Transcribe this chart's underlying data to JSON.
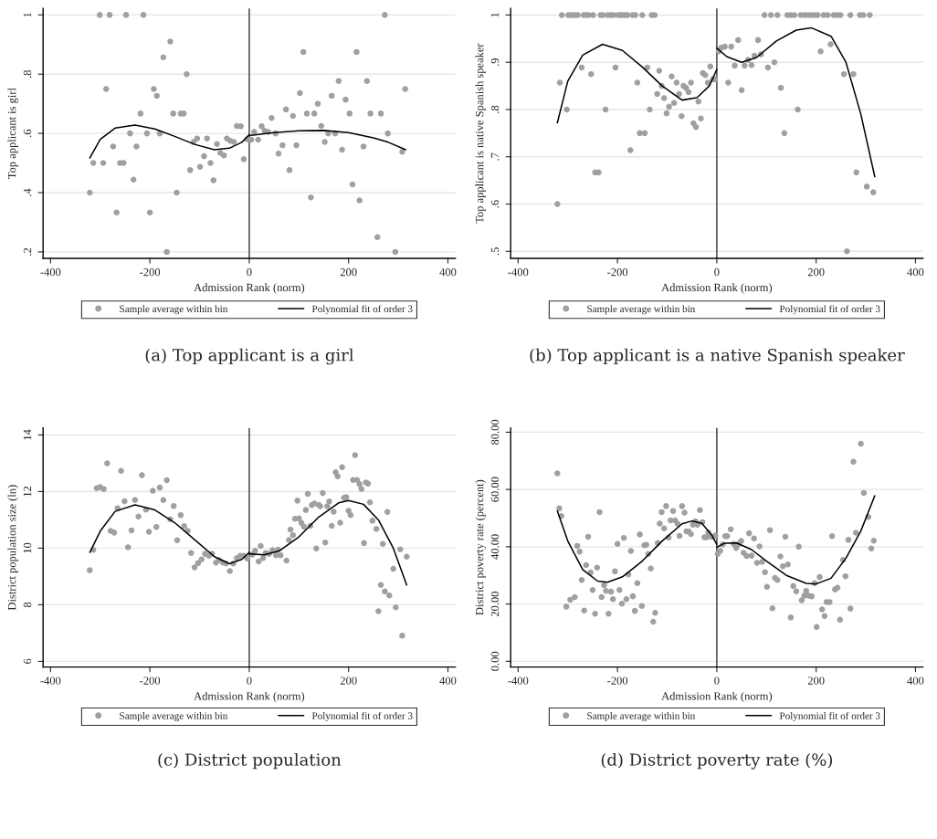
{
  "chart_data": [
    {
      "type": "scatter",
      "xlabel": "Admission Rank (norm)",
      "ylabel": "Top applicant is girl",
      "xlim": [
        -415,
        415
      ],
      "xticks": [
        -400,
        -200,
        0,
        200,
        400
      ],
      "ylim": [
        0.178,
        1.022
      ],
      "yticks": [
        {
          "value": 0.2,
          "label": ".2"
        },
        {
          "value": 0.4,
          "label": ".4"
        },
        {
          "value": 0.6,
          "label": ".6"
        },
        {
          "value": 0.8,
          "label": ".8"
        },
        {
          "value": 1,
          "label": "1"
        }
      ],
      "grid": "y",
      "legend": "bottom",
      "ref_lines": [
        {
          "axis": "x",
          "value": 0,
          "color": "#555555"
        }
      ],
      "annotations": [
        "(a) Top applicant is a girl"
      ],
      "series": [
        {
          "name": "Sample average within bin",
          "marker": "circle",
          "color": "#a0a0a0",
          "x": [
            -301,
            -281,
            -248,
            -213,
            273,
            -159,
            -173,
            -126,
            -288,
            -192,
            -186,
            -219,
            -153,
            -138,
            -132,
            -240,
            -206,
            -180,
            -274,
            -227,
            -314,
            -294,
            -260,
            -253,
            -233,
            -321,
            -146,
            -267,
            -200,
            -166,
            -119,
            -112,
            -105,
            -99,
            -91,
            -85,
            -78,
            -72,
            -65,
            -58,
            -51,
            -45,
            -38,
            -31,
            -25,
            -17,
            -11,
            -4,
            4,
            10,
            18,
            25,
            31,
            38,
            45,
            53,
            59,
            67,
            74,
            81,
            88,
            95,
            102,
            109,
            116,
            124,
            131,
            138,
            145,
            152,
            159,
            166,
            173,
            180,
            187,
            194,
            202,
            208,
            216,
            222,
            230,
            237,
            244,
            258,
            265,
            279,
            294,
            308,
            314
          ],
          "values": [
            1,
            1,
            1,
            1,
            1,
            0.91,
            0.857,
            0.8,
            0.75,
            0.75,
            0.727,
            0.667,
            0.667,
            0.667,
            0.667,
            0.6,
            0.6,
            0.6,
            0.556,
            0.556,
            0.5,
            0.5,
            0.5,
            0.5,
            0.444,
            0.4,
            0.4,
            0.333,
            0.333,
            0.2,
            0.476,
            0.571,
            0.583,
            0.487,
            0.523,
            0.583,
            0.5,
            0.442,
            0.564,
            0.534,
            0.526,
            0.583,
            0.575,
            0.571,
            0.625,
            0.624,
            0.513,
            0.58,
            0.579,
            0.605,
            0.579,
            0.624,
            0.609,
            0.605,
            0.652,
            0.6,
            0.532,
            0.56,
            0.681,
            0.476,
            0.659,
            0.56,
            0.736,
            0.875,
            0.667,
            0.384,
            0.667,
            0.7,
            0.625,
            0.571,
            0.6,
            0.727,
            0.6,
            0.777,
            0.545,
            0.714,
            0.667,
            0.428,
            0.875,
            0.374,
            0.556,
            0.777,
            0.667,
            0.25,
            0.667,
            0.6,
            0.2,
            0.538,
            0.75
          ]
        },
        {
          "name": "Polynomial fit of order 3",
          "type": "line",
          "line_style": "solid",
          "color": "#000000",
          "x": [
            -321,
            -300,
            -270,
            -230,
            -190,
            -150,
            -110,
            -70,
            -40,
            -15,
            0
          ],
          "values": [
            0.517,
            0.58,
            0.618,
            0.628,
            0.615,
            0.59,
            0.563,
            0.545,
            0.55,
            0.57,
            0.596
          ]
        },
        {
          "type": "line",
          "line_style": "solid",
          "color": "#000000",
          "x": [
            0,
            50,
            100,
            150,
            200,
            250,
            280,
            315
          ],
          "values": [
            0.593,
            0.603,
            0.609,
            0.61,
            0.603,
            0.585,
            0.57,
            0.545
          ]
        }
      ]
    },
    {
      "type": "scatter",
      "xlabel": "Admission Rank (norm)",
      "ylabel": "Top applicant is native Spanish speaker",
      "xlim": [
        -415,
        415
      ],
      "xticks": [
        -400,
        -200,
        0,
        200,
        400
      ],
      "ylim": [
        0.485,
        1.014
      ],
      "yticks": [
        {
          "value": 0.5,
          "label": ".5"
        },
        {
          "value": 0.6,
          "label": ".6"
        },
        {
          "value": 0.7,
          "label": ".7"
        },
        {
          "value": 0.8,
          "label": ".8"
        },
        {
          "value": 0.9,
          "label": ".9"
        },
        {
          "value": 1,
          "label": "1"
        }
      ],
      "grid": "y",
      "legend": "bottom",
      "ref_lines": [
        {
          "axis": "x",
          "value": 0,
          "color": "#555555"
        }
      ],
      "annotations": [
        "(b) Top applicant is a native Spanish speaker"
      ],
      "series": [
        {
          "name": "Sample average within bin",
          "marker": "circle",
          "color": "#a0a0a0",
          "x": [
            -312,
            -299,
            -294,
            -289,
            -285,
            -280,
            -268,
            -263,
            -258,
            -249,
            -234,
            -229,
            -219,
            -213,
            -208,
            -199,
            -195,
            -190,
            -185,
            -180,
            -170,
            -164,
            -150,
            -131,
            -125,
            96,
            109,
            122,
            142,
            149,
            156,
            169,
            177,
            184,
            191,
            197,
            203,
            215,
            223,
            235,
            242,
            249,
            269,
            288,
            295,
            308,
            -316,
            -321,
            -302,
            -272,
            -253,
            -245,
            -238,
            -224,
            -204,
            -174,
            -160,
            -155,
            -145,
            -140,
            -135,
            -120,
            -116,
            -111,
            -106,
            -101,
            -96,
            -91,
            -86,
            -81,
            -76,
            -71,
            -67,
            -62,
            -57,
            -52,
            -47,
            -42,
            -37,
            -32,
            -28,
            -23,
            -18,
            -13,
            -8,
            -4,
            4,
            9,
            16,
            23,
            29,
            36,
            43,
            50,
            56,
            63,
            70,
            76,
            83,
            89,
            103,
            116,
            129,
            136,
            163,
            209,
            229,
            256,
            262,
            275,
            281,
            302,
            315
          ],
          "values": [
            1,
            1,
            1,
            1,
            1,
            1,
            1,
            1,
            1,
            1,
            1,
            1,
            1,
            1,
            1,
            1,
            1,
            1,
            1,
            1,
            1,
            1,
            1,
            1,
            1,
            1,
            1,
            1,
            1,
            1,
            1,
            1,
            1,
            1,
            1,
            1,
            1,
            1,
            1,
            1,
            1,
            1,
            1,
            1,
            1,
            1,
            0.857,
            0.6,
            0.8,
            0.889,
            0.875,
            0.667,
            0.667,
            0.8,
            0.889,
            0.714,
            0.857,
            0.75,
            0.75,
            0.889,
            0.8,
            0.833,
            0.882,
            0.85,
            0.824,
            0.792,
            0.806,
            0.87,
            0.814,
            0.857,
            0.833,
            0.786,
            0.85,
            0.846,
            0.837,
            0.857,
            0.771,
            0.763,
            0.817,
            0.781,
            0.877,
            0.873,
            0.857,
            0.891,
            0.864,
            0.864,
            0.923,
            0.931,
            0.933,
            0.857,
            0.933,
            0.893,
            0.947,
            0.841,
            0.893,
            0.905,
            0.894,
            0.914,
            0.947,
            0.917,
            0.889,
            0.9,
            0.846,
            0.75,
            0.8,
            0.923,
            0.938,
            0.875,
            0.5,
            0.875,
            0.667,
            0.637,
            0.625
          ]
        },
        {
          "name": "Polynomial fit of order 3",
          "type": "line",
          "line_style": "solid",
          "color": "#000000",
          "x": [
            -321,
            -300,
            -270,
            -230,
            -190,
            -150,
            -110,
            -70,
            -40,
            -15,
            0
          ],
          "values": [
            0.772,
            0.86,
            0.915,
            0.938,
            0.925,
            0.89,
            0.85,
            0.82,
            0.825,
            0.85,
            0.885
          ]
        },
        {
          "type": "line",
          "line_style": "solid",
          "color": "#000000",
          "x": [
            0,
            20,
            50,
            80,
            120,
            160,
            190,
            230,
            260,
            290,
            318
          ],
          "values": [
            0.93,
            0.912,
            0.9,
            0.91,
            0.945,
            0.968,
            0.973,
            0.955,
            0.9,
            0.79,
            0.658
          ]
        }
      ]
    },
    {
      "type": "scatter",
      "xlabel": "Admission Rank (norm)",
      "ylabel": "District population size (ln)",
      "xlim": [
        -415,
        415
      ],
      "xticks": [
        -400,
        -200,
        0,
        200,
        400
      ],
      "ylim": [
        5.8,
        14.25
      ],
      "yticks": [
        6,
        8,
        10,
        12,
        14
      ],
      "grid": "y",
      "legend": "bottom",
      "ref_lines": [
        {
          "axis": "x",
          "value": 0,
          "color": "#555555"
        }
      ],
      "annotations": [
        "(c) District population"
      ],
      "series": [
        {
          "name": "Sample average within bin",
          "marker": "circle",
          "color": "#a0a0a0",
          "x": [
            -321,
            -314,
            -307,
            -300,
            -293,
            -286,
            -279,
            -272,
            -265,
            -258,
            -251,
            -244,
            -237,
            -230,
            -223,
            -216,
            -208,
            -202,
            -194,
            -187,
            -180,
            -173,
            -166,
            -159,
            -152,
            -145,
            -138,
            -131,
            -124,
            -117,
            -110,
            -103,
            -96,
            -89,
            -81,
            -75,
            -67,
            -61,
            -53,
            -47,
            -39,
            -32,
            -25,
            -18,
            -11,
            -4,
            6,
            12,
            19,
            23,
            28,
            33,
            40,
            47,
            54,
            58,
            63,
            75,
            80,
            83,
            88,
            92,
            97,
            100,
            105,
            110,
            114,
            118,
            123,
            126,
            131,
            135,
            140,
            143,
            148,
            153,
            157,
            161,
            166,
            170,
            174,
            178,
            183,
            187,
            191,
            195,
            200,
            204,
            209,
            213,
            217,
            222,
            226,
            231,
            235,
            239,
            243,
            248,
            256,
            260,
            265,
            269,
            273,
            278,
            282,
            290,
            295,
            304,
            308,
            317
          ],
          "values": [
            9.22,
            9.94,
            12.12,
            12.16,
            12.09,
            13.0,
            10.61,
            10.55,
            11.41,
            12.73,
            11.66,
            10.03,
            10.63,
            11.7,
            11.12,
            12.58,
            11.36,
            10.58,
            12.03,
            10.75,
            12.14,
            11.7,
            12.4,
            11.02,
            11.49,
            10.28,
            11.17,
            10.78,
            10.61,
            9.83,
            9.32,
            9.47,
            9.6,
            9.8,
            9.73,
            9.8,
            9.49,
            9.58,
            9.49,
            9.46,
            9.19,
            9.46,
            9.65,
            9.73,
            9.73,
            9.64,
            9.77,
            9.91,
            9.53,
            10.08,
            9.65,
            9.83,
            9.8,
            9.93,
            9.75,
            9.95,
            9.75,
            9.56,
            10.29,
            10.66,
            10.46,
            11.04,
            11.68,
            11.05,
            10.89,
            10.76,
            11.35,
            11.92,
            10.79,
            11.52,
            11.58,
            9.99,
            11.53,
            11.48,
            11.95,
            10.2,
            11.48,
            11.65,
            10.79,
            11.29,
            12.68,
            12.54,
            10.9,
            12.86,
            11.78,
            11.8,
            11.32,
            11.17,
            12.41,
            13.29,
            12.41,
            12.26,
            12.09,
            10.18,
            12.32,
            12.28,
            11.62,
            10.97,
            10.68,
            7.77,
            8.7,
            10.15,
            8.47,
            11.28,
            8.33,
            9.27,
            7.91,
            9.96,
            6.91,
            9.7
          ]
        },
        {
          "name": "Polynomial fit of order 3",
          "type": "line",
          "line_style": "solid",
          "color": "#000000",
          "x": [
            -321,
            -300,
            -270,
            -230,
            -190,
            -150,
            -110,
            -70,
            -40,
            -15,
            0
          ],
          "values": [
            9.85,
            10.6,
            11.3,
            11.53,
            11.35,
            10.9,
            10.3,
            9.7,
            9.45,
            9.6,
            9.85
          ]
        },
        {
          "type": "line",
          "line_style": "solid",
          "color": "#000000",
          "x": [
            0,
            30,
            60,
            100,
            140,
            180,
            200,
            230,
            260,
            290,
            317
          ],
          "values": [
            9.8,
            9.76,
            9.9,
            10.4,
            11.1,
            11.6,
            11.68,
            11.55,
            11.0,
            10.0,
            8.7
          ]
        }
      ]
    },
    {
      "type": "scatter",
      "xlabel": "Admission Rank (norm)",
      "ylabel": "District poverty rate (percent)",
      "xlim": [
        -415,
        415
      ],
      "xticks": [
        -400,
        -200,
        0,
        200,
        400
      ],
      "ylim": [
        -2,
        81.5
      ],
      "yticks": [
        {
          "value": 0,
          "label": "0.00"
        },
        {
          "value": 20,
          "label": "20.00"
        },
        {
          "value": 40,
          "label": "40.00"
        },
        {
          "value": 60,
          "label": "60.00"
        },
        {
          "value": 80,
          "label": "80.00"
        }
      ],
      "grid": "y",
      "legend": "bottom",
      "ref_lines": [
        {
          "axis": "x",
          "value": 0,
          "color": "#555555"
        }
      ],
      "annotations": [
        "(d) District poverty rate (%)"
      ],
      "series": [
        {
          "name": "Sample average within bin",
          "marker": "circle",
          "color": "#a0a0a0",
          "x": [
            -321,
            -317,
            -313,
            -303,
            -295,
            -286,
            -281,
            -276,
            -272,
            -267,
            -263,
            -259,
            -254,
            -250,
            -245,
            -241,
            -236,
            -232,
            -227,
            -223,
            -218,
            -213,
            -209,
            -205,
            -200,
            -196,
            -191,
            -187,
            -182,
            -178,
            -173,
            -169,
            -165,
            -160,
            -155,
            -151,
            -146,
            -142,
            -138,
            -133,
            -128,
            -124,
            -119,
            -115,
            -111,
            -106,
            -102,
            -97,
            -93,
            -88,
            -84,
            -79,
            -75,
            -70,
            -65,
            -61,
            -57,
            -52,
            -48,
            -43,
            -39,
            -34,
            -29,
            -25,
            -21,
            -17,
            -12,
            -7,
            -3,
            2,
            7,
            12,
            17,
            21,
            28,
            34,
            39,
            43,
            49,
            54,
            60,
            65,
            70,
            75,
            81,
            86,
            91,
            97,
            101,
            107,
            112,
            117,
            122,
            128,
            133,
            138,
            143,
            149,
            154,
            160,
            165,
            171,
            176,
            180,
            185,
            191,
            197,
            201,
            207,
            212,
            217,
            221,
            227,
            232,
            238,
            243,
            248,
            254,
            259,
            265,
            269,
            275,
            280,
            290,
            296,
            305,
            311,
            316
          ],
          "values": [
            65.6,
            53.4,
            50.7,
            19.1,
            21.5,
            22.4,
            40.3,
            38.3,
            28.4,
            17.7,
            33.6,
            43.5,
            31.0,
            24.9,
            16.6,
            32.7,
            52.1,
            22.4,
            26.6,
            24.6,
            16.6,
            24.3,
            21.7,
            31.4,
            41.0,
            24.9,
            20.1,
            43.1,
            21.7,
            30.3,
            38.5,
            22.7,
            17.6,
            27.3,
            44.3,
            19.3,
            40.5,
            40.7,
            37.5,
            32.4,
            13.8,
            16.9,
            41.3,
            48.1,
            52.1,
            46.4,
            54.2,
            43.2,
            49.2,
            52.5,
            49.2,
            48.0,
            43.8,
            54.2,
            51.9,
            45.4,
            45.4,
            44.4,
            47.7,
            48.9,
            47.7,
            52.8,
            48.6,
            43.3,
            43.3,
            45.0,
            43.5,
            43.5,
            43.9,
            37.5,
            38.6,
            40.8,
            43.7,
            43.7,
            46.1,
            41.0,
            39.6,
            40.8,
            42.0,
            37.9,
            36.8,
            44.7,
            36.9,
            42.9,
            34.4,
            40.1,
            34.7,
            31.1,
            26.0,
            45.8,
            18.5,
            29.1,
            28.4,
            36.6,
            33.2,
            43.5,
            33.8,
            15.3,
            26.3,
            24.4,
            40.0,
            21.3,
            22.9,
            24.6,
            22.9,
            22.7,
            27.3,
            12.0,
            29.4,
            18.1,
            15.8,
            20.7,
            20.7,
            43.7,
            25.1,
            25.7,
            14.5,
            35.4,
            29.7,
            42.4,
            18.4,
            69.7,
            44.9,
            76.0,
            58.8,
            50.4,
            39.4,
            42.1
          ]
        },
        {
          "name": "Polynomial fit of order 3",
          "type": "line",
          "line_style": "solid",
          "color": "#000000",
          "x": [
            -321,
            -300,
            -270,
            -240,
            -220,
            -190,
            -150,
            -110,
            -70,
            -50,
            -30,
            -10,
            0
          ],
          "values": [
            52.5,
            42,
            32,
            28,
            27.6,
            29.5,
            35,
            42,
            48,
            49,
            48.2,
            44,
            40.8
          ]
        },
        {
          "type": "line",
          "line_style": "solid",
          "color": "#000000",
          "x": [
            0,
            15,
            40,
            70,
            100,
            140,
            180,
            200,
            230,
            260,
            290,
            318
          ],
          "values": [
            39.8,
            41.2,
            41.3,
            39,
            35,
            30,
            27.2,
            27,
            29,
            36,
            45.5,
            57.8
          ]
        }
      ]
    }
  ]
}
